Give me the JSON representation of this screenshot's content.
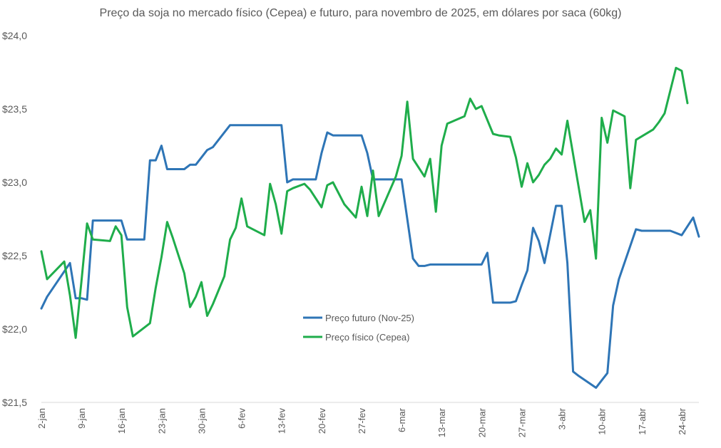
{
  "chart_data": {
    "type": "line",
    "title": "Preço da soja no mercado físico (Cepea) e futuro, para novembro de 2025, em dólares por saca (60kg)",
    "xlabel": "",
    "ylabel": "",
    "ylim": [
      21.5,
      24.0
    ],
    "y_ticks": [
      "$21,5",
      "$22,0",
      "$22,5",
      "$23,0",
      "$23,5",
      "$24,0"
    ],
    "y_tick_values": [
      21.5,
      22.0,
      22.5,
      23.0,
      23.5,
      24.0
    ],
    "x_tick_labels": [
      "2-jan",
      "9-jan",
      "16-jan",
      "23-jan",
      "30-jan",
      "6-fev",
      "13-fev",
      "20-fev",
      "27-fev",
      "6-mar",
      "13-mar",
      "20-mar",
      "27-mar",
      "3-abr",
      "10-abr",
      "17-abr",
      "24-abr"
    ],
    "x_tick_days": [
      2,
      9,
      16,
      23,
      30,
      37,
      44,
      51,
      58,
      65,
      72,
      79,
      86,
      93,
      100,
      107,
      114
    ],
    "x_range": [
      2,
      117
    ],
    "grid": false,
    "legend_position": "center",
    "series": [
      {
        "name": "Preço futuro (Nov-25)",
        "color": "#2E75B6",
        "x": [
          2,
          3,
          7,
          8,
          9,
          10,
          11,
          15,
          16,
          17,
          18,
          19,
          20,
          21,
          22,
          23,
          24,
          25,
          26,
          27,
          28,
          29,
          31,
          32,
          35,
          38,
          44,
          45,
          46,
          50,
          51,
          52,
          53,
          57,
          58,
          59,
          60,
          61,
          63,
          64,
          65,
          66,
          67,
          68,
          69,
          70,
          71,
          73,
          79,
          80,
          81,
          82,
          84,
          85,
          86,
          87,
          88,
          89,
          90,
          92,
          93,
          94,
          95,
          96,
          99,
          100,
          101,
          102,
          103,
          106,
          107,
          108,
          111,
          112,
          114,
          116,
          117
        ],
        "y": [
          22.14,
          22.22,
          22.45,
          22.21,
          22.21,
          22.2,
          22.74,
          22.74,
          22.74,
          22.61,
          22.61,
          22.61,
          22.61,
          23.15,
          23.15,
          23.25,
          23.09,
          23.09,
          23.09,
          23.09,
          23.12,
          23.12,
          23.22,
          23.24,
          23.39,
          23.39,
          23.39,
          23.0,
          23.02,
          23.02,
          23.2,
          23.34,
          23.32,
          23.32,
          23.32,
          23.2,
          23.02,
          23.02,
          23.02,
          23.02,
          23.02,
          22.75,
          22.48,
          22.43,
          22.43,
          22.44,
          22.44,
          22.44,
          22.44,
          22.52,
          22.18,
          22.18,
          22.18,
          22.19,
          22.3,
          22.4,
          22.69,
          22.6,
          22.45,
          22.84,
          22.84,
          22.45,
          21.71,
          21.68,
          21.6,
          21.65,
          21.7,
          22.16,
          22.34,
          22.68,
          22.67,
          22.67,
          22.67,
          22.67,
          22.64,
          22.76,
          22.63
        ]
      },
      {
        "name": "Preço físico (Cepea)",
        "color": "#1FAD4B",
        "x": [
          2,
          3,
          6,
          7,
          8,
          9,
          10,
          11,
          14,
          15,
          16,
          17,
          18,
          21,
          22,
          23,
          24,
          25,
          27,
          28,
          29,
          30,
          31,
          32,
          34,
          35,
          36,
          37,
          38,
          41,
          42,
          43,
          44,
          45,
          46,
          48,
          49,
          51,
          52,
          53,
          55,
          57,
          58,
          59,
          60,
          61,
          64,
          65,
          66,
          67,
          69,
          70,
          71,
          72,
          73,
          76,
          77,
          78,
          79,
          81,
          82,
          84,
          85,
          86,
          87,
          88,
          89,
          90,
          91,
          92,
          93,
          94,
          97,
          98,
          99,
          100,
          101,
          102,
          104,
          105,
          106,
          109,
          110,
          111,
          113,
          114,
          115
        ],
        "y": [
          22.53,
          22.34,
          22.46,
          22.23,
          21.94,
          22.32,
          22.72,
          22.61,
          22.6,
          22.7,
          22.64,
          22.15,
          21.95,
          22.04,
          22.28,
          22.49,
          22.73,
          22.62,
          22.38,
          22.15,
          22.22,
          22.32,
          22.09,
          22.17,
          22.36,
          22.61,
          22.69,
          22.89,
          22.7,
          22.64,
          22.99,
          22.85,
          22.65,
          22.94,
          22.96,
          22.99,
          22.95,
          22.83,
          22.98,
          23.0,
          22.85,
          22.76,
          22.97,
          22.77,
          23.08,
          22.77,
          23.04,
          23.18,
          23.55,
          23.16,
          23.04,
          23.16,
          22.8,
          23.25,
          23.4,
          23.45,
          23.57,
          23.5,
          23.52,
          23.33,
          23.32,
          23.31,
          23.17,
          22.97,
          23.13,
          23.0,
          23.05,
          23.12,
          23.16,
          23.23,
          23.19,
          23.42,
          22.73,
          22.81,
          22.48,
          23.44,
          23.27,
          23.49,
          23.45,
          22.96,
          23.29,
          23.36,
          23.41,
          23.47,
          23.78,
          23.76,
          23.54
        ]
      }
    ]
  }
}
